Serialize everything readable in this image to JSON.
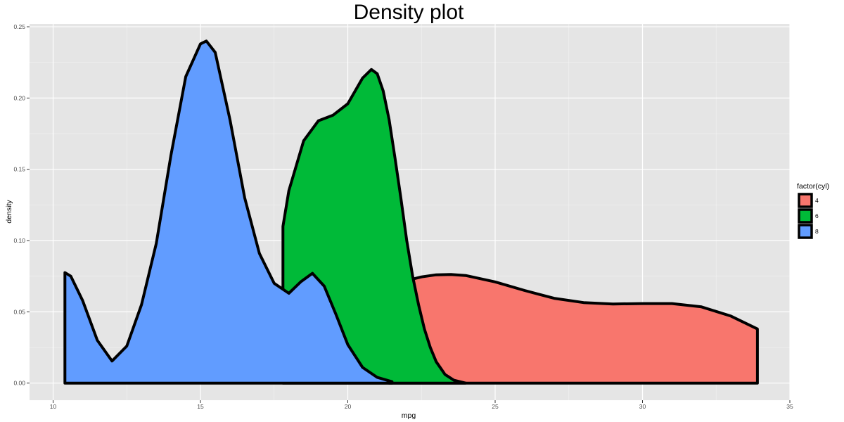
{
  "chart_data": {
    "type": "area",
    "title": "Density plot",
    "xlabel": "mpg",
    "ylabel": "density",
    "xlim": [
      9.2,
      35
    ],
    "ylim": [
      -0.012,
      0.252
    ],
    "x_ticks": [
      10,
      15,
      20,
      25,
      30,
      35
    ],
    "x_tick_labels": [
      "10",
      "15",
      "20",
      "25",
      "30",
      "35"
    ],
    "y_ticks": [
      0,
      0.05,
      0.1,
      0.15,
      0.2,
      0.25
    ],
    "y_tick_labels": [
      "0.00",
      "0.05",
      "0.10",
      "0.15",
      "0.20",
      "0.25"
    ],
    "grid": true,
    "background": "#E5E5E5",
    "legend": {
      "title": "factor(cyl)",
      "position": "right",
      "entries": [
        {
          "label": "4",
          "color": "#F8766D"
        },
        {
          "label": "6",
          "color": "#00BA38"
        },
        {
          "label": "8",
          "color": "#619CFF"
        }
      ]
    },
    "series": [
      {
        "name": "4",
        "color": "#F8766D",
        "x": [
          21.4,
          22.0,
          22.5,
          23.0,
          23.5,
          24.0,
          25.0,
          26.0,
          27.0,
          28.0,
          29.0,
          30.0,
          31.0,
          32.0,
          33.0,
          33.9
        ],
        "density": [
          0.066,
          0.072,
          0.0745,
          0.076,
          0.0762,
          0.0755,
          0.071,
          0.065,
          0.0595,
          0.0565,
          0.0555,
          0.0558,
          0.0558,
          0.0535,
          0.047,
          0.038
        ]
      },
      {
        "name": "6",
        "color": "#00BA38",
        "x": [
          17.8,
          18.0,
          18.5,
          19.0,
          19.5,
          20.0,
          20.5,
          20.8,
          21.0,
          21.2,
          21.4,
          21.6,
          21.8,
          22.0,
          22.2,
          22.4,
          22.6,
          22.8,
          23.0,
          23.3,
          23.6,
          24.0
        ],
        "density": [
          0.11,
          0.135,
          0.17,
          0.184,
          0.188,
          0.196,
          0.214,
          0.22,
          0.217,
          0.205,
          0.185,
          0.158,
          0.13,
          0.1,
          0.075,
          0.055,
          0.038,
          0.025,
          0.015,
          0.006,
          0.002,
          0.0
        ]
      },
      {
        "name": "8",
        "color": "#619CFF",
        "x": [
          10.4,
          10.6,
          11.0,
          11.5,
          12.0,
          12.5,
          13.0,
          13.5,
          14.0,
          14.5,
          15.0,
          15.2,
          15.5,
          16.0,
          16.5,
          17.0,
          17.5,
          18.0,
          18.4,
          18.8,
          19.2,
          19.6,
          20.0,
          20.5,
          21.0,
          21.5
        ],
        "density": [
          0.0775,
          0.075,
          0.058,
          0.03,
          0.0155,
          0.026,
          0.055,
          0.098,
          0.16,
          0.215,
          0.238,
          0.24,
          0.232,
          0.185,
          0.13,
          0.091,
          0.07,
          0.063,
          0.071,
          0.077,
          0.068,
          0.048,
          0.027,
          0.011,
          0.004,
          0.001
        ]
      }
    ]
  }
}
